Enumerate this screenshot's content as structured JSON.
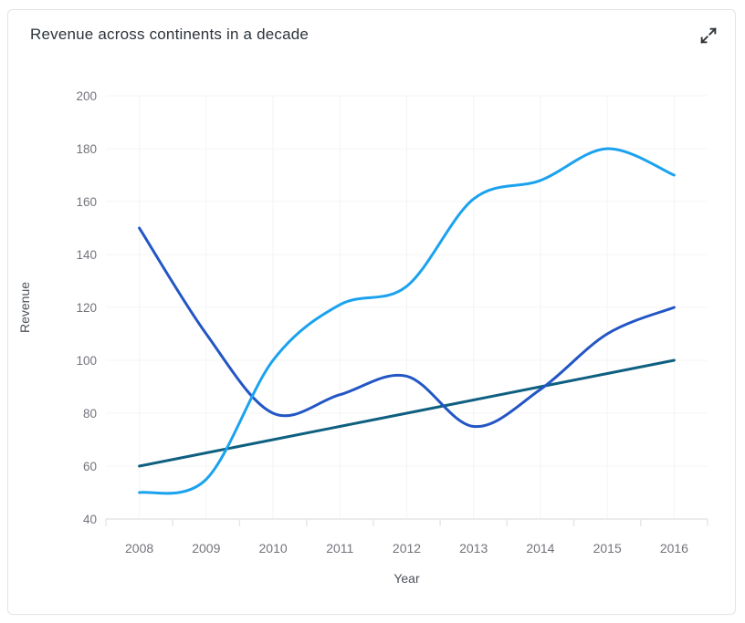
{
  "card": {
    "title": "Revenue across continents in a decade"
  },
  "icons": {
    "expand": "expand-diagonal-arrows"
  },
  "colors": {
    "card_border": "#e4e4e7",
    "title_text": "#2d333a",
    "tick_text": "#73737c",
    "axis_title_text": "#4c5259",
    "grid_line": "#f4f4f6",
    "axis_line": "#e6e6ea",
    "icon": "#2e353b"
  },
  "chart_data": {
    "type": "line",
    "smooth": true,
    "title": "Revenue across continents in a decade",
    "xlabel": "Year",
    "ylabel": "Revenue",
    "categories": [
      "2008",
      "2009",
      "2010",
      "2011",
      "2012",
      "2013",
      "2014",
      "2015",
      "2016"
    ],
    "series": [
      {
        "color": "#0e5f80",
        "values": [
          60,
          65,
          70,
          75,
          80,
          85,
          90,
          95,
          100
        ]
      },
      {
        "color": "#2356c5",
        "values": [
          150,
          110,
          80,
          87,
          94,
          75,
          89,
          110,
          120
        ]
      },
      {
        "color": "#1ba2ef",
        "values": [
          50,
          55,
          100,
          121,
          128,
          161,
          168,
          180,
          170
        ]
      }
    ],
    "ylim": [
      40,
      200
    ],
    "ytick_step": 20,
    "yticks": [
      40,
      60,
      80,
      100,
      120,
      140,
      160,
      180,
      200
    ],
    "grid": true,
    "legend": false
  }
}
